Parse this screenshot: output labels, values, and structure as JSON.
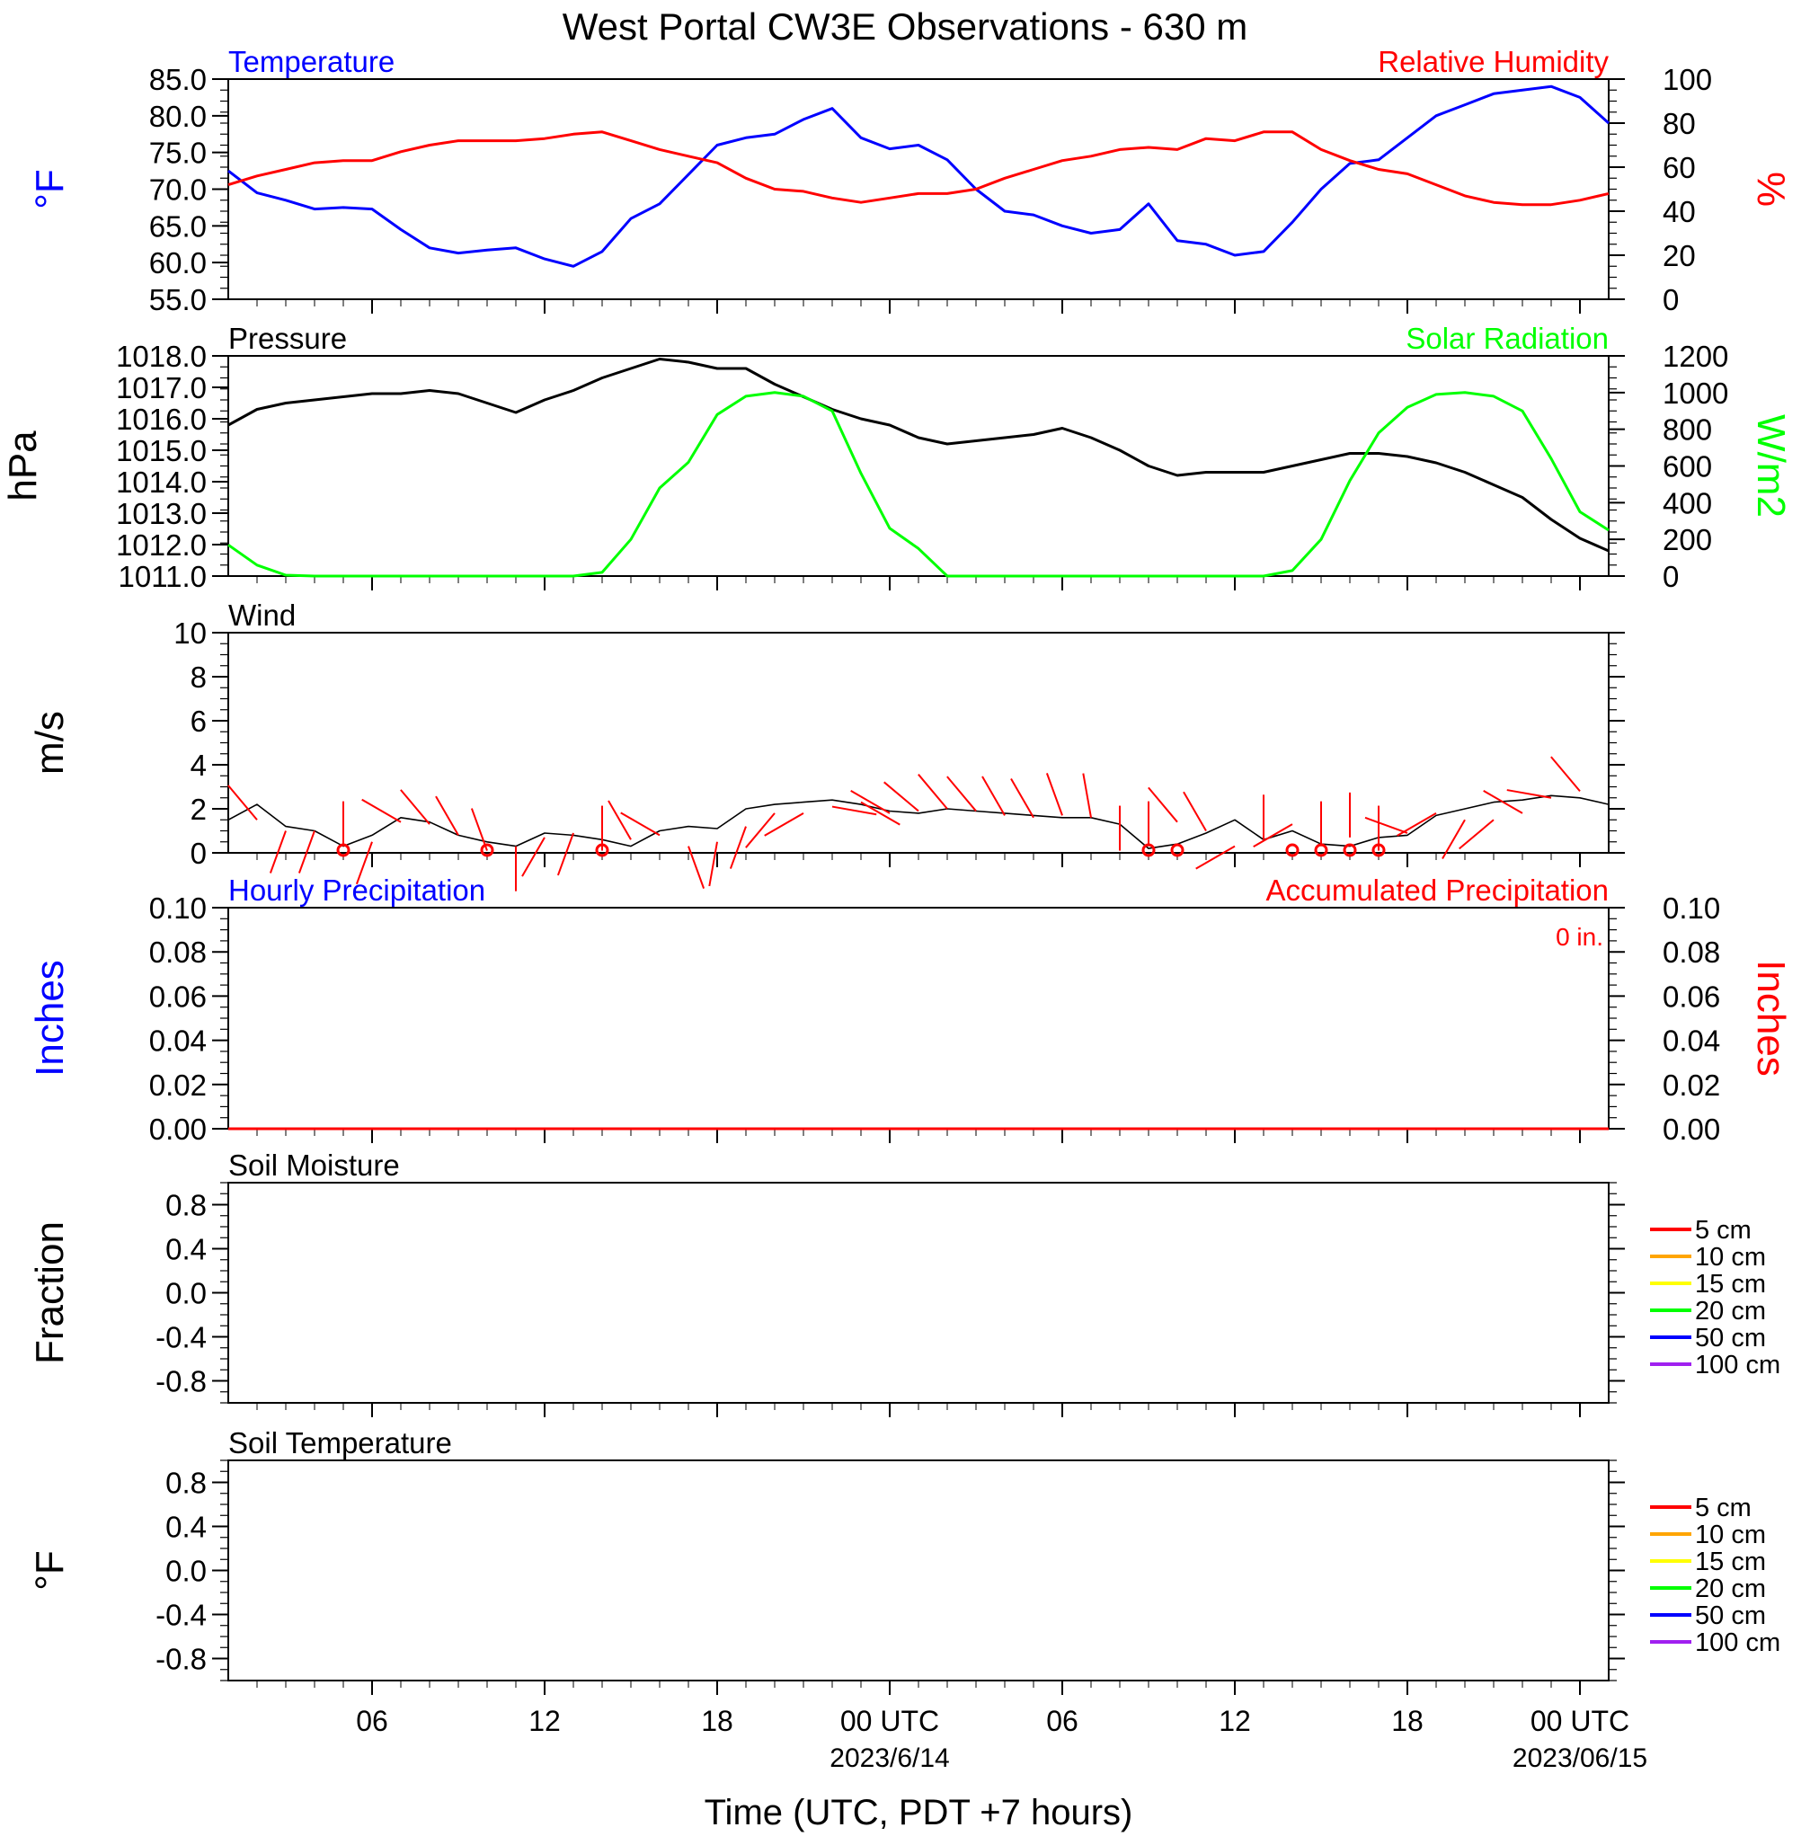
{
  "figure_title": "West Portal CW3E Observations - 630 m",
  "x_axis": {
    "label": "Time (UTC, PDT +7 hours)",
    "tick_labels": [
      "06",
      "12",
      "18",
      "00 UTC",
      "06",
      "12",
      "18",
      "00 UTC"
    ],
    "date_labels": [
      "2023/6/14",
      "2023/06/15"
    ]
  },
  "colors": {
    "temperature": "#0000ff",
    "humidity": "#ff0000",
    "pressure": "#000000",
    "solar": "#00ff00",
    "wind": "#000000",
    "barbs": "#ff0000",
    "soil_5": "#ff0000",
    "soil_10": "#ffa500",
    "soil_15": "#ffff00",
    "soil_20": "#00ff00",
    "soil_50": "#0000ff",
    "soil_100": "#a020f0"
  },
  "chart_data": [
    {
      "type": "line",
      "panel": "temperature-humidity",
      "title_left": "Temperature",
      "title_right": "Relative Humidity",
      "ylabel_left": "°F",
      "ylabel_right": "%",
      "x_units": "hours since 2023-06-13 00 UTC",
      "xlim": [
        1,
        49
      ],
      "ylim_left": [
        55,
        85
      ],
      "ylim_right": [
        0,
        100
      ],
      "yticks_left": [
        "85.0",
        "80.0",
        "75.0",
        "70.0",
        "65.0",
        "60.0",
        "55.0"
      ],
      "yticks_right": [
        "100",
        "80",
        "60",
        "40",
        "20",
        "0"
      ],
      "series": [
        {
          "name": "Temperature",
          "axis": "left",
          "x": [
            1,
            2,
            3,
            4,
            5,
            6,
            7,
            8,
            9,
            10,
            11,
            12,
            13,
            14,
            15,
            16,
            17,
            18,
            19,
            20,
            21,
            22,
            23,
            24,
            25,
            26,
            27,
            28,
            29,
            30,
            31,
            32,
            33,
            34,
            35,
            36,
            37,
            38,
            39,
            40,
            41,
            42,
            43,
            44,
            45,
            46,
            47,
            48,
            49
          ],
          "y": [
            72.5,
            69.5,
            68.5,
            67.3,
            67.5,
            67.3,
            64.5,
            62,
            61.3,
            61.7,
            62,
            60.5,
            59.5,
            61.5,
            66,
            68,
            72,
            76,
            77,
            77.5,
            79.5,
            81,
            77,
            75.5,
            76,
            74,
            70,
            67,
            66.5,
            65,
            64,
            64.5,
            68,
            63,
            62.5,
            61,
            61.5,
            65.5,
            70,
            73.5,
            74,
            77,
            80,
            81.5,
            83,
            83.5,
            84,
            82.5,
            79
          ]
        },
        {
          "name": "Relative Humidity",
          "axis": "right",
          "x": [
            1,
            2,
            3,
            4,
            5,
            6,
            7,
            8,
            9,
            10,
            11,
            12,
            13,
            14,
            15,
            16,
            17,
            18,
            19,
            20,
            21,
            22,
            23,
            24,
            25,
            26,
            27,
            28,
            29,
            30,
            31,
            32,
            33,
            34,
            35,
            36,
            37,
            38,
            39,
            40,
            41,
            42,
            43,
            44,
            45,
            46,
            47,
            48,
            49
          ],
          "y": [
            52,
            56,
            59,
            62,
            63,
            63,
            67,
            70,
            72,
            72,
            72,
            73,
            75,
            76,
            72,
            68,
            65,
            62,
            55,
            50,
            49,
            46,
            44,
            46,
            48,
            48,
            50,
            55,
            59,
            63,
            65,
            68,
            69,
            68,
            73,
            72,
            76,
            76,
            68,
            63,
            59,
            57,
            52,
            47,
            44,
            43,
            43,
            45,
            48
          ]
        }
      ]
    },
    {
      "type": "line",
      "panel": "pressure-solar",
      "title_left": "Pressure",
      "title_right": "Solar Radiation",
      "ylabel_left": "hPa",
      "ylabel_right": "W/m2",
      "x_units": "hours since 2023-06-13 00 UTC",
      "xlim": [
        1,
        49
      ],
      "ylim_left": [
        1011,
        1018
      ],
      "ylim_right": [
        0,
        1200
      ],
      "yticks_left": [
        "1018.0",
        "1017.0",
        "1016.0",
        "1015.0",
        "1014.0",
        "1013.0",
        "1012.0",
        "1011.0"
      ],
      "yticks_right": [
        "1200",
        "1000",
        "800",
        "600",
        "400",
        "200",
        "0"
      ],
      "series": [
        {
          "name": "Pressure",
          "axis": "left",
          "x": [
            1,
            2,
            3,
            4,
            5,
            6,
            7,
            8,
            9,
            10,
            11,
            12,
            13,
            14,
            15,
            16,
            17,
            18,
            19,
            20,
            21,
            22,
            23,
            24,
            25,
            26,
            27,
            28,
            29,
            30,
            31,
            32,
            33,
            34,
            35,
            36,
            37,
            38,
            39,
            40,
            41,
            42,
            43,
            44,
            45,
            46,
            47,
            48,
            49
          ],
          "y": [
            1015.8,
            1016.3,
            1016.5,
            1016.6,
            1016.7,
            1016.8,
            1016.8,
            1016.9,
            1016.8,
            1016.5,
            1016.2,
            1016.6,
            1016.9,
            1017.3,
            1017.6,
            1017.9,
            1017.8,
            1017.6,
            1017.6,
            1017.1,
            1016.7,
            1016.3,
            1016.0,
            1015.8,
            1015.4,
            1015.2,
            1015.3,
            1015.4,
            1015.5,
            1015.7,
            1015.4,
            1015.0,
            1014.5,
            1014.2,
            1014.3,
            1014.3,
            1014.3,
            1014.5,
            1014.7,
            1014.9,
            1014.9,
            1014.8,
            1014.6,
            1014.3,
            1013.9,
            1013.5,
            1012.8,
            1012.2,
            1011.8
          ]
        },
        {
          "name": "Solar Radiation",
          "axis": "right",
          "x": [
            1,
            2,
            3,
            4,
            5,
            6,
            7,
            8,
            9,
            10,
            11,
            12,
            13,
            14,
            15,
            16,
            17,
            18,
            19,
            20,
            21,
            22,
            23,
            24,
            25,
            26,
            27,
            28,
            29,
            30,
            31,
            32,
            33,
            34,
            35,
            36,
            37,
            38,
            39,
            40,
            41,
            42,
            43,
            44,
            45,
            46,
            47,
            48,
            49
          ],
          "y": [
            170,
            60,
            5,
            0,
            0,
            0,
            0,
            0,
            0,
            0,
            0,
            0,
            0,
            20,
            200,
            480,
            620,
            880,
            980,
            1000,
            980,
            900,
            560,
            260,
            150,
            0,
            0,
            0,
            0,
            0,
            0,
            0,
            0,
            0,
            0,
            0,
            0,
            30,
            200,
            520,
            780,
            920,
            990,
            1000,
            980,
            900,
            640,
            350,
            250
          ]
        }
      ]
    },
    {
      "type": "line",
      "panel": "wind",
      "title_left": "Wind",
      "ylabel_left": "m/s",
      "x_units": "hours since 2023-06-13 00 UTC",
      "xlim": [
        1,
        49
      ],
      "ylim_left": [
        0,
        10
      ],
      "yticks_left": [
        "10",
        "8",
        "6",
        "4",
        "2",
        "0"
      ],
      "series": [
        {
          "name": "Wind speed",
          "axis": "left",
          "x": [
            1,
            2,
            3,
            4,
            5,
            6,
            7,
            8,
            9,
            10,
            11,
            12,
            13,
            14,
            15,
            16,
            17,
            18,
            19,
            20,
            21,
            22,
            23,
            24,
            25,
            26,
            27,
            28,
            29,
            30,
            31,
            32,
            33,
            34,
            35,
            36,
            37,
            38,
            39,
            40,
            41,
            42,
            43,
            44,
            45,
            46,
            47,
            48,
            49
          ],
          "y": [
            1.5,
            2.2,
            1.2,
            1.0,
            0.3,
            0.8,
            1.6,
            1.4,
            0.8,
            0.5,
            0.3,
            0.9,
            0.8,
            0.6,
            0.3,
            1.0,
            1.2,
            1.1,
            2.0,
            2.2,
            2.3,
            2.4,
            2.2,
            1.9,
            1.8,
            2.0,
            1.9,
            1.8,
            1.7,
            1.6,
            1.6,
            1.3,
            0.2,
            0.4,
            0.9,
            1.5,
            0.6,
            1.0,
            0.4,
            0.3,
            0.7,
            0.8,
            1.7,
            2.0,
            2.3,
            2.4,
            2.6,
            2.5,
            2.2
          ]
        }
      ]
    },
    {
      "type": "line",
      "panel": "precipitation",
      "title_left": "Hourly Precipitation",
      "title_right": "Accumulated Precipitation",
      "annotation": "0 in.",
      "ylabel_left": "Inches",
      "ylabel_right": "Inches",
      "x_units": "hours since 2023-06-13 00 UTC",
      "xlim": [
        1,
        49
      ],
      "ylim_left": [
        0,
        0.1
      ],
      "ylim_right": [
        0,
        0.1
      ],
      "yticks_left": [
        "0.10",
        "0.08",
        "0.06",
        "0.04",
        "0.02",
        "0.00"
      ],
      "yticks_right": [
        "0.10",
        "0.08",
        "0.06",
        "0.04",
        "0.02",
        "0.00"
      ],
      "series": [
        {
          "name": "Accumulated Precipitation",
          "axis": "right",
          "x": [
            1,
            49
          ],
          "y": [
            0,
            0
          ]
        }
      ]
    },
    {
      "type": "line",
      "panel": "soil-moisture",
      "title_left": "Soil Moisture",
      "ylabel_left": "Fraction",
      "xlim": [
        1,
        49
      ],
      "ylim_left": [
        -1,
        1
      ],
      "yticks_left": [
        "0.8",
        "0.4",
        "0.0",
        "-0.4",
        "-0.8"
      ],
      "legend": [
        "5 cm",
        "10 cm",
        "15 cm",
        "20 cm",
        "50 cm",
        "100 cm"
      ],
      "series": []
    },
    {
      "type": "line",
      "panel": "soil-temperature",
      "title_left": "Soil Temperature",
      "ylabel_left": "°F",
      "xlim": [
        1,
        49
      ],
      "ylim_left": [
        -1,
        1
      ],
      "yticks_left": [
        "0.8",
        "0.4",
        "0.0",
        "-0.4",
        "-0.8"
      ],
      "legend": [
        "5 cm",
        "10 cm",
        "15 cm",
        "20 cm",
        "50 cm",
        "100 cm"
      ],
      "series": []
    }
  ],
  "wind_barbs": {
    "name": "Wind direction barbs",
    "hours": [
      2,
      3,
      4,
      5,
      6,
      7,
      8,
      9,
      10,
      11,
      12,
      13,
      14,
      15,
      16,
      17,
      18,
      19,
      20,
      21,
      22,
      23,
      24,
      25,
      26,
      27,
      28,
      29,
      30,
      31,
      32,
      33,
      34,
      35,
      36,
      37,
      38,
      39,
      40,
      41,
      42,
      43,
      44,
      45,
      46,
      47,
      48
    ],
    "speeds": [
      1.5,
      1.0,
      1.0,
      0.3,
      0.5,
      1.4,
      1.3,
      0.8,
      0.1,
      0.3,
      0.7,
      0.9,
      0.1,
      0.6,
      0.8,
      0.3,
      0.5,
      1.2,
      1.8,
      1.8,
      2.1,
      2.3,
      1.8,
      1.9,
      2.0,
      1.9,
      1.7,
      1.6,
      1.7,
      1.6,
      0.1,
      0.3,
      1.4,
      1.0,
      0.3,
      0.6,
      1.3,
      0.3,
      0.7,
      0.1,
      0.9,
      1.8,
      1.5,
      1.5,
      1.8,
      2.5,
      2.8
    ],
    "directions_deg": [
      320,
      200,
      200,
      0,
      200,
      300,
      320,
      330,
      340,
      180,
      210,
      200,
      0,
      330,
      300,
      160,
      190,
      200,
      220,
      240,
      100,
      120,
      300,
      310,
      320,
      320,
      330,
      330,
      340,
      350,
      0,
      0,
      320,
      330,
      240,
      0,
      240,
      0,
      0,
      0,
      290,
      240,
      210,
      230,
      300,
      280,
      320
    ],
    "calm_hours": [
      5,
      10,
      14,
      33,
      34,
      38,
      39,
      40,
      41
    ]
  }
}
